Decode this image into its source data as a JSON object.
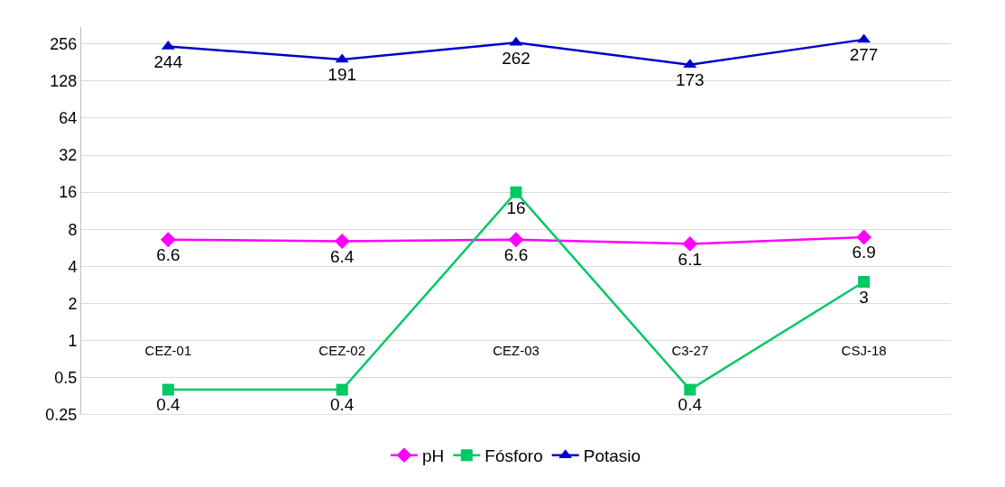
{
  "chart_data": {
    "type": "line",
    "categories": [
      "CEZ-01",
      "CEZ-02",
      "CEZ-03",
      "C3-27",
      "CSJ-18"
    ],
    "series": [
      {
        "name": "pH",
        "color": "#ff00ff",
        "marker": "diamond",
        "values": [
          6.6,
          6.4,
          6.6,
          6.1,
          6.9
        ]
      },
      {
        "name": "Fósforo",
        "color": "#00c864",
        "marker": "square",
        "values": [
          0.4,
          0.4,
          16,
          0.4,
          3
        ]
      },
      {
        "name": "Potasio",
        "color": "#0000cc",
        "marker": "triangle",
        "values": [
          244,
          191,
          262,
          173,
          277
        ]
      }
    ],
    "log": "y",
    "ylim": [
      0.25,
      350
    ],
    "yticks": [
      0.25,
      0.5,
      1,
      2,
      4,
      8,
      16,
      32,
      64,
      128,
      256
    ],
    "grid": "y",
    "legend": "bottom",
    "data_labels": true
  }
}
